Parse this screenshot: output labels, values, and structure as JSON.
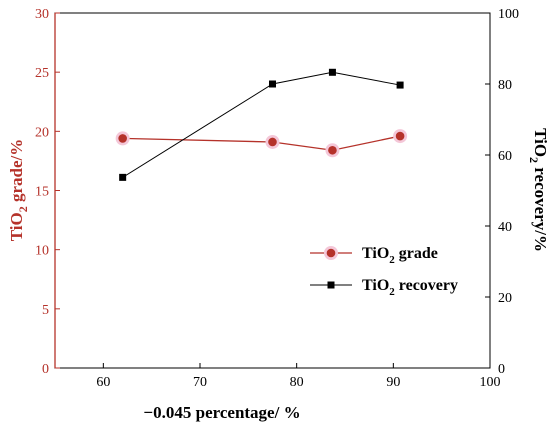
{
  "chart_data": {
    "type": "line",
    "x": [
      62,
      77.5,
      83.7,
      90.7
    ],
    "xlabel": "−0.045 percentage/ %",
    "xlim": [
      55,
      100
    ],
    "xticks": [
      60,
      70,
      80,
      90,
      100
    ],
    "y_left": {
      "label_main": "TiO",
      "label_sub": "2",
      "label_rest": " grade/%",
      "lim": [
        0,
        30
      ],
      "ticks": [
        0,
        5,
        10,
        15,
        20,
        25,
        30
      ],
      "color": "#b5322a"
    },
    "y_right": {
      "label_main": "TiO",
      "label_sub": "2",
      "label_rest": " recovery/%",
      "lim": [
        0,
        100
      ],
      "ticks": [
        0,
        20,
        40,
        60,
        80,
        100
      ],
      "color": "#000000"
    },
    "series": [
      {
        "name_main": "TiO",
        "name_sub": "2",
        "name_rest": " grade",
        "axis": "left",
        "marker": "circle",
        "color": "#b5322a",
        "halo": "#f4c7d8",
        "values": [
          19.4,
          19.1,
          18.4,
          19.6
        ]
      },
      {
        "name_main": "TiO",
        "name_sub": "2",
        "name_rest": " recovery",
        "axis": "right",
        "marker": "square",
        "color": "#000000",
        "values": [
          53.7,
          80.0,
          83.3,
          79.7
        ]
      }
    ],
    "grid": false,
    "legend_position": "lower-right"
  }
}
